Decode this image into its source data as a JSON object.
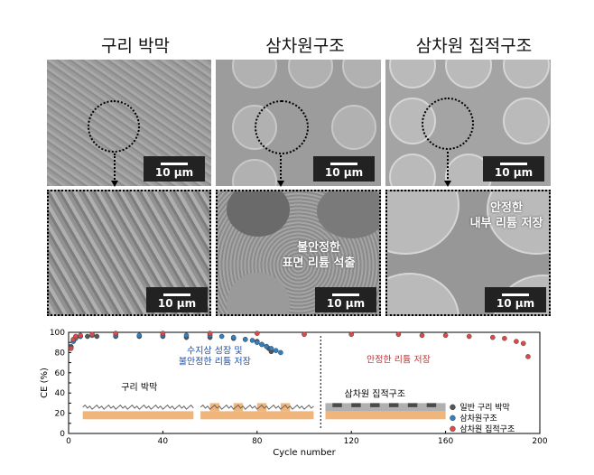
{
  "columns": {
    "copper": {
      "title": "구리 박막"
    },
    "three_d": {
      "title": "삼차원구조"
    },
    "three_d_integrated": {
      "title": "삼차원 집적구조"
    }
  },
  "scale_label": "10 μm",
  "annotations": {
    "unstable": "불안정한\n표면 리튬 석출",
    "stable": "안정한\n내부 리튬 저장"
  },
  "chart_data": {
    "type": "scatter",
    "xlabel": "Cycle number",
    "ylabel": "CE (%)",
    "xlim": [
      0,
      200
    ],
    "ylim": [
      0,
      100
    ],
    "xticks": [
      0,
      40,
      80,
      120,
      160,
      200
    ],
    "yticks": [
      0,
      10,
      20,
      30,
      40,
      50,
      60,
      70,
      80,
      90,
      100
    ],
    "series": [
      {
        "name": "일반 구리 박막",
        "color": "#555555",
        "x": [
          1,
          2,
          3,
          5,
          8,
          12,
          20,
          30,
          40,
          50,
          60,
          70,
          75,
          80,
          82,
          84,
          85,
          86
        ],
        "y": [
          86,
          92,
          94,
          96,
          96,
          96,
          96,
          96,
          96,
          95,
          95,
          94,
          93,
          91,
          88,
          86,
          84,
          81
        ]
      },
      {
        "name": "삼차원구조",
        "color": "#2f7fc1",
        "x": [
          1,
          2,
          3,
          5,
          10,
          20,
          30,
          40,
          50,
          60,
          65,
          70,
          75,
          78,
          80,
          82,
          84,
          86,
          88,
          90
        ],
        "y": [
          85,
          91,
          94,
          96,
          97,
          97,
          97,
          97,
          97,
          97,
          96,
          95,
          93,
          92,
          90,
          88,
          86,
          84,
          82,
          80
        ]
      },
      {
        "name": "삼차원 집적구조",
        "color": "#d94b4b",
        "x": [
          1,
          2,
          3,
          5,
          10,
          20,
          40,
          60,
          80,
          100,
          120,
          140,
          150,
          160,
          170,
          180,
          185,
          190,
          193,
          195
        ],
        "y": [
          84,
          93,
          96,
          97,
          98,
          99,
          99,
          99,
          99,
          98,
          98,
          98,
          97,
          97,
          96,
          95,
          94,
          91,
          89,
          76
        ]
      }
    ],
    "annotations": {
      "dendrite": "수지상 성장 및\n불안정한 리튬 저장",
      "stable": "안정한 리튬 저장",
      "copper_inset": "구리 박막",
      "integrated_inset": "삼차원 집적구조"
    }
  },
  "colors": {
    "copper_base": "#f0b57a",
    "dendrite_text": "#1f4fa8",
    "stable_text": "#c43030"
  }
}
